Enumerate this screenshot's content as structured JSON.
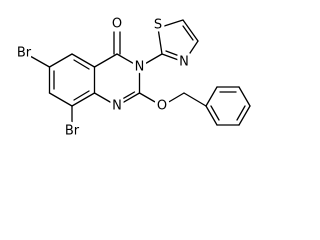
{
  "atoms": {
    "carbonyl_oxygen": "O",
    "ring_nitrogen_3": "N",
    "ring_nitrogen_1": "N",
    "thiazole_sulfur": "S",
    "thiazole_nitrogen": "N",
    "ether_oxygen": "O",
    "bromine_6": "Br",
    "bromine_8": "Br"
  }
}
